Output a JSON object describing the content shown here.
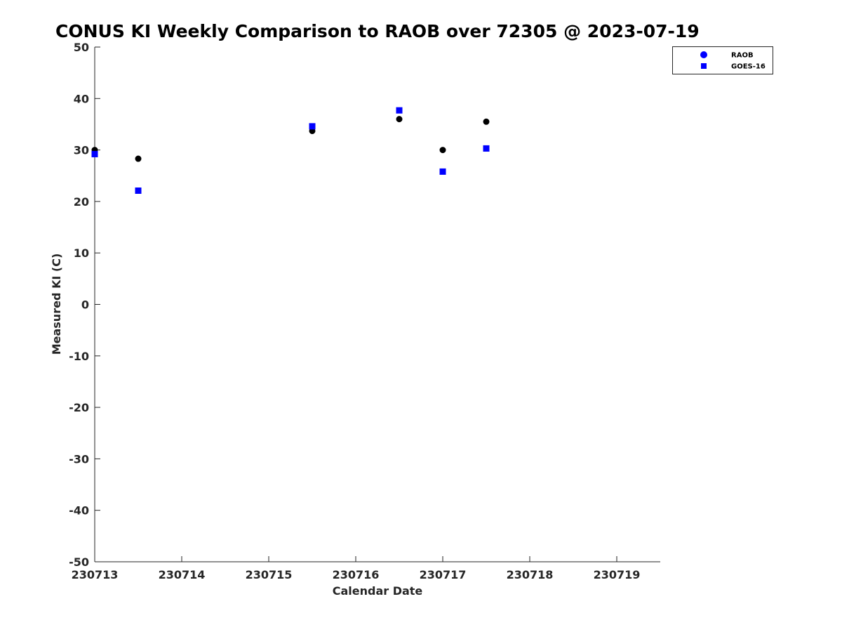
{
  "chart_data": {
    "type": "scatter",
    "title": "CONUS KI Weekly Comparison to RAOB over 72305 @ 2023-07-19",
    "xlabel": "Calendar Date",
    "ylabel": "Measured KI (C)",
    "x_tick_labels": [
      "230713",
      "230714",
      "230715",
      "230716",
      "230717",
      "230718",
      "230719"
    ],
    "y_tick_labels": [
      "50",
      "40",
      "30",
      "20",
      "10",
      "0",
      "-10",
      "-20",
      "-30",
      "-40",
      "-50"
    ],
    "xlim": [
      "2023-07-13 00:00",
      "2023-07-19 12:00"
    ],
    "ylim": [
      -50,
      50
    ],
    "grid": false,
    "legend_position": "top-right",
    "series": [
      {
        "name": "RAOB",
        "marker": "circle",
        "marker_color": "#000000",
        "legend_color": "#0000ff",
        "x": [
          "2023-07-13 00:00",
          "2023-07-13 12:00",
          "2023-07-15 12:00",
          "2023-07-16 12:00",
          "2023-07-17 00:00",
          "2023-07-17 12:00"
        ],
        "y": [
          30.0,
          28.3,
          33.7,
          36.0,
          30.0,
          35.5
        ]
      },
      {
        "name": "GOES-16",
        "marker": "square",
        "marker_color": "#0000ff",
        "legend_color": "#0000ff",
        "x": [
          "2023-07-13 00:00",
          "2023-07-13 12:00",
          "2023-07-15 12:00",
          "2023-07-16 12:00",
          "2023-07-17 00:00",
          "2023-07-17 12:00"
        ],
        "y": [
          29.2,
          22.1,
          34.6,
          37.7,
          25.8,
          30.3
        ]
      }
    ]
  }
}
